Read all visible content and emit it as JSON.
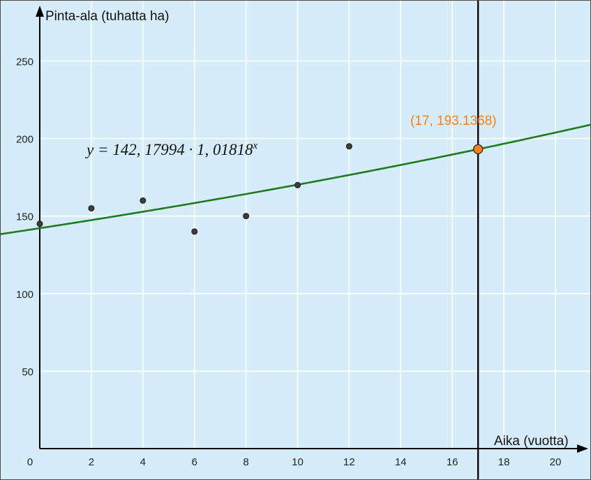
{
  "chart_data": {
    "type": "scatter",
    "xlabel": "Aika (vuotta)",
    "ylabel": "Pinta-ala (tuhatta ha)",
    "xlim": [
      0,
      21.2
    ],
    "ylim": [
      0,
      280
    ],
    "x_ticks": [
      0,
      2,
      4,
      6,
      8,
      10,
      12,
      14,
      16,
      18,
      20
    ],
    "x_tick_labels": [
      "0",
      "2",
      "4",
      "6",
      "8",
      "10",
      "12",
      "14",
      "16",
      "18",
      "20"
    ],
    "y_ticks": [
      50,
      100,
      150,
      200,
      250
    ],
    "y_tick_labels": [
      "50",
      "100",
      "150",
      "200",
      "250"
    ],
    "grid": true,
    "background_color": "#d6ecf8",
    "points": [
      {
        "x": 0,
        "y": 145
      },
      {
        "x": 2,
        "y": 155
      },
      {
        "x": 4,
        "y": 160
      },
      {
        "x": 6,
        "y": 140
      },
      {
        "x": 8,
        "y": 150
      },
      {
        "x": 10,
        "y": 170
      },
      {
        "x": 12,
        "y": 195
      }
    ],
    "point_color": "#3d3d3d",
    "fit_curve": {
      "type": "exponential",
      "a": 142.17994,
      "b": 1.01818,
      "equation_label": "y = 142, 17994 · 1, 01818",
      "equation_exponent": "x",
      "color": "#1e7a1e"
    },
    "vertical_line": {
      "x": 17,
      "color": "#000000"
    },
    "highlight_point": {
      "x": 17,
      "y": 193.1368,
      "label": "(17, 193.1368)",
      "color": "#f4801f"
    }
  }
}
